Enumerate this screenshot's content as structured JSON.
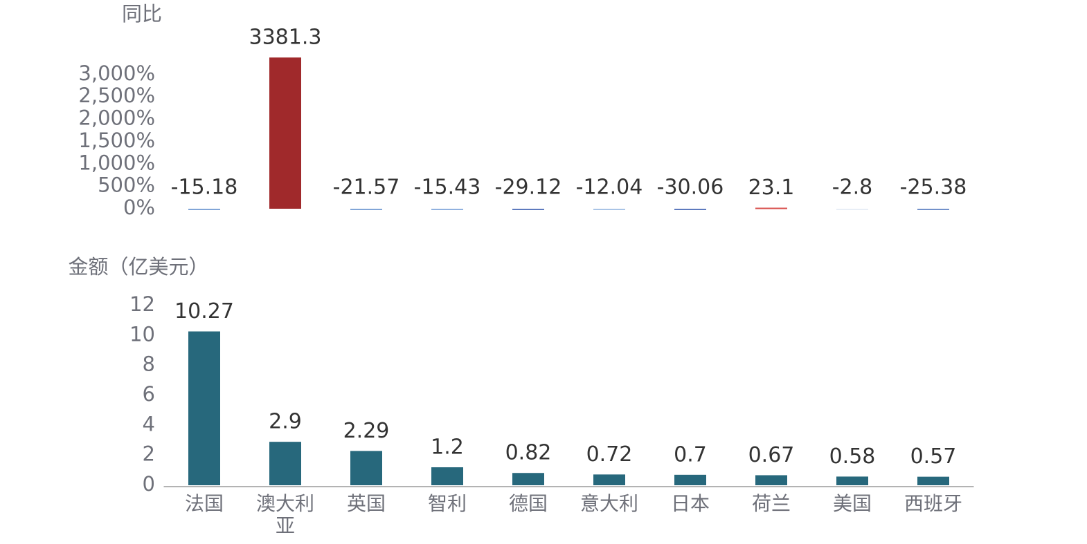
{
  "chart_data": [
    {
      "type": "bar",
      "title": "同比",
      "values": [
        -15.18,
        3381.3,
        -21.57,
        -15.43,
        -29.12,
        -12.04,
        -30.06,
        23.1,
        -2.8,
        -25.38
      ],
      "colors": [
        "#7fa3d6",
        "#a0292b",
        "#7fa3d6",
        "#8eb0de",
        "#5a78bd",
        "#a7c3e6",
        "#5a78bd",
        "#d9534f",
        "#e8eef6",
        "#6f8fc9"
      ],
      "ylim": [
        -50,
        3400
      ],
      "yticks": [
        {
          "value": 0,
          "label": "0%"
        },
        {
          "value": 500,
          "label": "500%"
        },
        {
          "value": 1000,
          "label": "1,000%"
        },
        {
          "value": 1500,
          "label": "1,500%"
        },
        {
          "value": 2000,
          "label": "2,000%"
        },
        {
          "value": 2500,
          "label": "2,500%"
        },
        {
          "value": 3000,
          "label": "3,000%"
        }
      ]
    },
    {
      "type": "bar",
      "title": "金额（亿美元）",
      "categories": [
        "法国",
        "澳大利亚",
        "英国",
        "智利",
        "德国",
        "意大利",
        "日本",
        "荷兰",
        "美国",
        "西班牙"
      ],
      "values": [
        10.27,
        2.9,
        2.29,
        1.2,
        0.82,
        0.72,
        0.7,
        0.67,
        0.58,
        0.57
      ],
      "color": "#27687c",
      "ylim": [
        0,
        12
      ],
      "yticks": [
        0,
        2,
        4,
        6,
        8,
        10,
        12
      ]
    }
  ]
}
